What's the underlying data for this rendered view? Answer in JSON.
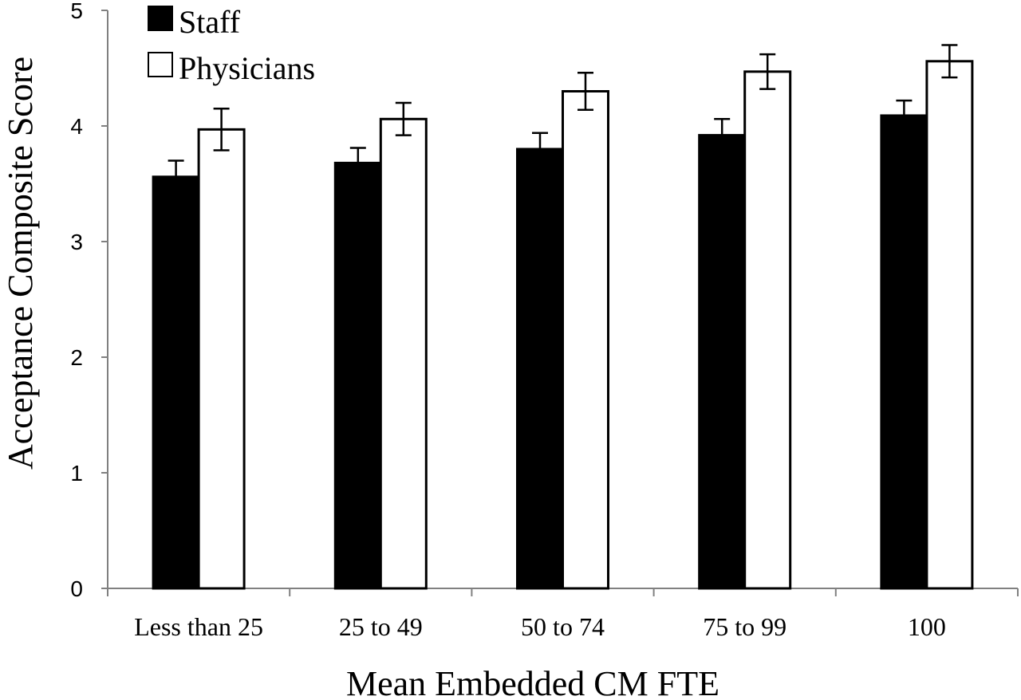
{
  "chart_data": {
    "type": "bar",
    "xlabel": "Mean Embedded CM FTE",
    "ylabel": "Acceptance Composite Score",
    "categories": [
      "Less than 25",
      "25 to 49",
      "50 to 74",
      "75 to 99",
      "100"
    ],
    "ylim": [
      0,
      5
    ],
    "yticks": [
      "0",
      "1",
      "2",
      "3",
      "4",
      "5"
    ],
    "grid": false,
    "legend_position": "top-left",
    "series": [
      {
        "name": "Staff",
        "color": "#000000",
        "values": [
          3.56,
          3.68,
          3.8,
          3.92,
          4.09
        ],
        "err_low": [
          3.42,
          3.55,
          3.66,
          3.78,
          3.96
        ],
        "err_high": [
          3.7,
          3.81,
          3.94,
          4.06,
          4.22
        ]
      },
      {
        "name": "Physicians",
        "color": "#ffffff",
        "values": [
          3.97,
          4.06,
          4.3,
          4.47,
          4.56
        ],
        "err_low": [
          3.79,
          3.92,
          4.14,
          4.32,
          4.42
        ],
        "err_high": [
          4.15,
          4.2,
          4.46,
          4.62,
          4.7
        ]
      }
    ]
  }
}
